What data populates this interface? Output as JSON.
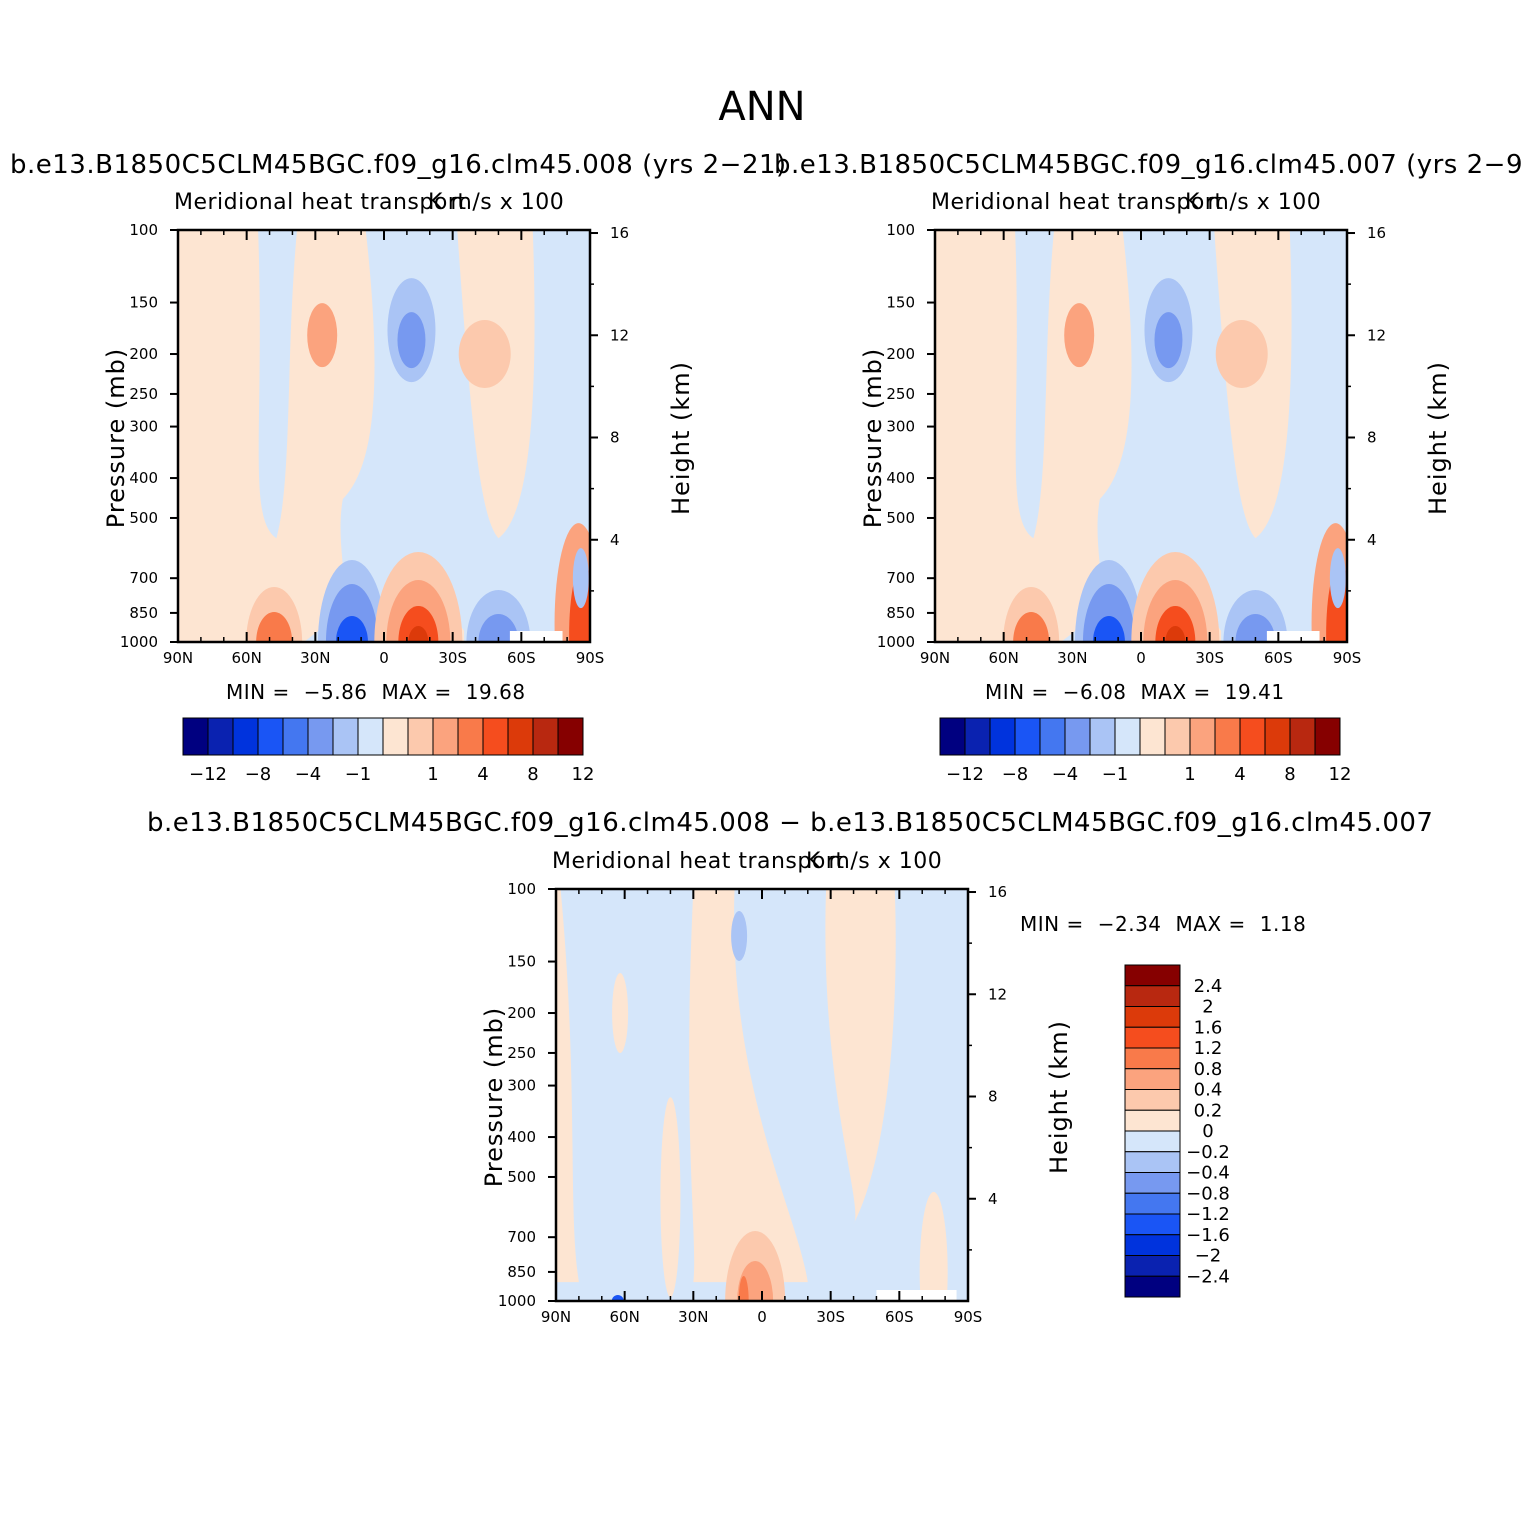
{
  "page_title": "ANN",
  "colors": {
    "scale": [
      "#000080",
      "#0a22b0",
      "#0033dd",
      "#1a55f5",
      "#4477f0",
      "#7799f0",
      "#aac4f5",
      "#d5e6fa",
      "#fde5d2",
      "#fcc9ad",
      "#fba37e",
      "#f97a4a",
      "#f54d1e",
      "#dc3a0a",
      "#b82810",
      "#860000"
    ],
    "neg_weak": "#d5e6fa",
    "pos_weak": "#fde5d2"
  },
  "chart_data": [
    {
      "id": "model1",
      "type": "heatmap",
      "run_title": "b.e13.B1850C5CLM45BGC.f09_g16.clm45.008 (yrs 2−21)",
      "variable": "Meridional heat transport",
      "units": "K m/s x 100",
      "ylabel": "Pressure (mb)",
      "y2label": "Height (km)",
      "x_ticks": [
        "90N",
        "60N",
        "30N",
        "0",
        "30S",
        "60S",
        "90S"
      ],
      "y_ticks": [
        100,
        150,
        200,
        250,
        300,
        400,
        500,
        700,
        850,
        1000
      ],
      "y2_ticks": [
        16,
        12,
        8,
        4
      ],
      "min_label": "MIN =",
      "min_value": "−5.86",
      "max_label": "MAX =",
      "max_value": "19.68",
      "colorbar_labels": [
        "−12",
        "−8",
        "−4",
        "−1",
        "1",
        "4",
        "8",
        "12"
      ],
      "features": [
        {
          "lat": 25,
          "p": 200,
          "value": 4
        },
        {
          "lat": -10,
          "p": 200,
          "value": -3
        },
        {
          "lat": -45,
          "p": 250,
          "value": 2
        },
        {
          "lat": -15,
          "p": 980,
          "value": 8
        },
        {
          "lat": 15,
          "p": 980,
          "value": -4
        },
        {
          "lat": 48,
          "p": 970,
          "value": 4
        },
        {
          "lat": -50,
          "p": 975,
          "value": -3
        },
        {
          "lat": -85,
          "p": 940,
          "value": 19.68
        }
      ]
    },
    {
      "id": "model2",
      "type": "heatmap",
      "run_title": "b.e13.B1850C5CLM45BGC.f09_g16.clm45.007 (yrs 2−9)",
      "variable": "Meridional heat transport",
      "units": "K m/s x 100",
      "ylabel": "Pressure (mb)",
      "y2label": "Height (km)",
      "x_ticks": [
        "90N",
        "60N",
        "30N",
        "0",
        "30S",
        "60S",
        "90S"
      ],
      "y_ticks": [
        100,
        150,
        200,
        250,
        300,
        400,
        500,
        700,
        850,
        1000
      ],
      "y2_ticks": [
        16,
        12,
        8,
        4
      ],
      "min_label": "MIN =",
      "min_value": "−6.08",
      "max_label": "MAX =",
      "max_value": "19.41",
      "colorbar_labels": [
        "−12",
        "−8",
        "−4",
        "−1",
        "1",
        "4",
        "8",
        "12"
      ],
      "features": [
        {
          "lat": 25,
          "p": 200,
          "value": 4
        },
        {
          "lat": -10,
          "p": 200,
          "value": -3
        },
        {
          "lat": -45,
          "p": 250,
          "value": 2
        },
        {
          "lat": -15,
          "p": 980,
          "value": 8
        },
        {
          "lat": 15,
          "p": 980,
          "value": -4
        },
        {
          "lat": 48,
          "p": 970,
          "value": 4
        },
        {
          "lat": -50,
          "p": 975,
          "value": -3
        },
        {
          "lat": -85,
          "p": 940,
          "value": 19.41
        }
      ]
    },
    {
      "id": "difference",
      "type": "heatmap",
      "run_title": "b.e13.B1850C5CLM45BGC.f09_g16.clm45.008 − b.e13.B1850C5CLM45BGC.f09_g16.clm45.007",
      "variable": "Meridional heat transport",
      "units": "K m/s x 100",
      "ylabel": "Pressure (mb)",
      "y2label": "Height (km)",
      "x_ticks": [
        "90N",
        "60N",
        "30N",
        "0",
        "30S",
        "60S",
        "90S"
      ],
      "y_ticks": [
        100,
        150,
        200,
        250,
        300,
        400,
        500,
        700,
        850,
        1000
      ],
      "y2_ticks": [
        16,
        12,
        8,
        4
      ],
      "min_label": "MIN =",
      "min_value": "−2.34",
      "max_label": "MAX =",
      "max_value": "1.18",
      "colorbar_labels": [
        "2.4",
        "2",
        "1.6",
        "1.2",
        "0.8",
        "0.4",
        "0.2",
        "0",
        "−0.2",
        "−0.4",
        "−0.8",
        "−1.2",
        "−1.6",
        "−2",
        "−2.4"
      ],
      "features": [
        {
          "lat": 3,
          "p": 980,
          "value": 1.18
        },
        {
          "lat": 63,
          "p": 1000,
          "value": -2.34
        },
        {
          "lat": 10,
          "p": 130,
          "value": -0.3
        }
      ]
    }
  ]
}
